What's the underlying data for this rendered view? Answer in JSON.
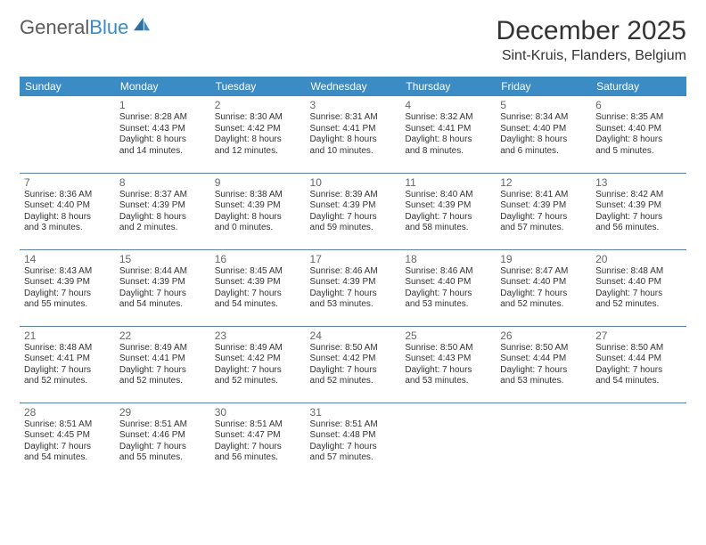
{
  "brand": {
    "name1": "General",
    "name2": "Blue"
  },
  "title": "December 2025",
  "location": "Sint-Kruis, Flanders, Belgium",
  "header_bg": "#3b8bc4",
  "weekdays": [
    "Sunday",
    "Monday",
    "Tuesday",
    "Wednesday",
    "Thursday",
    "Friday",
    "Saturday"
  ],
  "weeks": [
    [
      {
        "n": "",
        "sr": "",
        "ss": "",
        "d1": "",
        "d2": ""
      },
      {
        "n": "1",
        "sr": "Sunrise: 8:28 AM",
        "ss": "Sunset: 4:43 PM",
        "d1": "Daylight: 8 hours",
        "d2": "and 14 minutes."
      },
      {
        "n": "2",
        "sr": "Sunrise: 8:30 AM",
        "ss": "Sunset: 4:42 PM",
        "d1": "Daylight: 8 hours",
        "d2": "and 12 minutes."
      },
      {
        "n": "3",
        "sr": "Sunrise: 8:31 AM",
        "ss": "Sunset: 4:41 PM",
        "d1": "Daylight: 8 hours",
        "d2": "and 10 minutes."
      },
      {
        "n": "4",
        "sr": "Sunrise: 8:32 AM",
        "ss": "Sunset: 4:41 PM",
        "d1": "Daylight: 8 hours",
        "d2": "and 8 minutes."
      },
      {
        "n": "5",
        "sr": "Sunrise: 8:34 AM",
        "ss": "Sunset: 4:40 PM",
        "d1": "Daylight: 8 hours",
        "d2": "and 6 minutes."
      },
      {
        "n": "6",
        "sr": "Sunrise: 8:35 AM",
        "ss": "Sunset: 4:40 PM",
        "d1": "Daylight: 8 hours",
        "d2": "and 5 minutes."
      }
    ],
    [
      {
        "n": "7",
        "sr": "Sunrise: 8:36 AM",
        "ss": "Sunset: 4:40 PM",
        "d1": "Daylight: 8 hours",
        "d2": "and 3 minutes."
      },
      {
        "n": "8",
        "sr": "Sunrise: 8:37 AM",
        "ss": "Sunset: 4:39 PM",
        "d1": "Daylight: 8 hours",
        "d2": "and 2 minutes."
      },
      {
        "n": "9",
        "sr": "Sunrise: 8:38 AM",
        "ss": "Sunset: 4:39 PM",
        "d1": "Daylight: 8 hours",
        "d2": "and 0 minutes."
      },
      {
        "n": "10",
        "sr": "Sunrise: 8:39 AM",
        "ss": "Sunset: 4:39 PM",
        "d1": "Daylight: 7 hours",
        "d2": "and 59 minutes."
      },
      {
        "n": "11",
        "sr": "Sunrise: 8:40 AM",
        "ss": "Sunset: 4:39 PM",
        "d1": "Daylight: 7 hours",
        "d2": "and 58 minutes."
      },
      {
        "n": "12",
        "sr": "Sunrise: 8:41 AM",
        "ss": "Sunset: 4:39 PM",
        "d1": "Daylight: 7 hours",
        "d2": "and 57 minutes."
      },
      {
        "n": "13",
        "sr": "Sunrise: 8:42 AM",
        "ss": "Sunset: 4:39 PM",
        "d1": "Daylight: 7 hours",
        "d2": "and 56 minutes."
      }
    ],
    [
      {
        "n": "14",
        "sr": "Sunrise: 8:43 AM",
        "ss": "Sunset: 4:39 PM",
        "d1": "Daylight: 7 hours",
        "d2": "and 55 minutes."
      },
      {
        "n": "15",
        "sr": "Sunrise: 8:44 AM",
        "ss": "Sunset: 4:39 PM",
        "d1": "Daylight: 7 hours",
        "d2": "and 54 minutes."
      },
      {
        "n": "16",
        "sr": "Sunrise: 8:45 AM",
        "ss": "Sunset: 4:39 PM",
        "d1": "Daylight: 7 hours",
        "d2": "and 54 minutes."
      },
      {
        "n": "17",
        "sr": "Sunrise: 8:46 AM",
        "ss": "Sunset: 4:39 PM",
        "d1": "Daylight: 7 hours",
        "d2": "and 53 minutes."
      },
      {
        "n": "18",
        "sr": "Sunrise: 8:46 AM",
        "ss": "Sunset: 4:40 PM",
        "d1": "Daylight: 7 hours",
        "d2": "and 53 minutes."
      },
      {
        "n": "19",
        "sr": "Sunrise: 8:47 AM",
        "ss": "Sunset: 4:40 PM",
        "d1": "Daylight: 7 hours",
        "d2": "and 52 minutes."
      },
      {
        "n": "20",
        "sr": "Sunrise: 8:48 AM",
        "ss": "Sunset: 4:40 PM",
        "d1": "Daylight: 7 hours",
        "d2": "and 52 minutes."
      }
    ],
    [
      {
        "n": "21",
        "sr": "Sunrise: 8:48 AM",
        "ss": "Sunset: 4:41 PM",
        "d1": "Daylight: 7 hours",
        "d2": "and 52 minutes."
      },
      {
        "n": "22",
        "sr": "Sunrise: 8:49 AM",
        "ss": "Sunset: 4:41 PM",
        "d1": "Daylight: 7 hours",
        "d2": "and 52 minutes."
      },
      {
        "n": "23",
        "sr": "Sunrise: 8:49 AM",
        "ss": "Sunset: 4:42 PM",
        "d1": "Daylight: 7 hours",
        "d2": "and 52 minutes."
      },
      {
        "n": "24",
        "sr": "Sunrise: 8:50 AM",
        "ss": "Sunset: 4:42 PM",
        "d1": "Daylight: 7 hours",
        "d2": "and 52 minutes."
      },
      {
        "n": "25",
        "sr": "Sunrise: 8:50 AM",
        "ss": "Sunset: 4:43 PM",
        "d1": "Daylight: 7 hours",
        "d2": "and 53 minutes."
      },
      {
        "n": "26",
        "sr": "Sunrise: 8:50 AM",
        "ss": "Sunset: 4:44 PM",
        "d1": "Daylight: 7 hours",
        "d2": "and 53 minutes."
      },
      {
        "n": "27",
        "sr": "Sunrise: 8:50 AM",
        "ss": "Sunset: 4:44 PM",
        "d1": "Daylight: 7 hours",
        "d2": "and 54 minutes."
      }
    ],
    [
      {
        "n": "28",
        "sr": "Sunrise: 8:51 AM",
        "ss": "Sunset: 4:45 PM",
        "d1": "Daylight: 7 hours",
        "d2": "and 54 minutes."
      },
      {
        "n": "29",
        "sr": "Sunrise: 8:51 AM",
        "ss": "Sunset: 4:46 PM",
        "d1": "Daylight: 7 hours",
        "d2": "and 55 minutes."
      },
      {
        "n": "30",
        "sr": "Sunrise: 8:51 AM",
        "ss": "Sunset: 4:47 PM",
        "d1": "Daylight: 7 hours",
        "d2": "and 56 minutes."
      },
      {
        "n": "31",
        "sr": "Sunrise: 8:51 AM",
        "ss": "Sunset: 4:48 PM",
        "d1": "Daylight: 7 hours",
        "d2": "and 57 minutes."
      },
      {
        "n": "",
        "sr": "",
        "ss": "",
        "d1": "",
        "d2": ""
      },
      {
        "n": "",
        "sr": "",
        "ss": "",
        "d1": "",
        "d2": ""
      },
      {
        "n": "",
        "sr": "",
        "ss": "",
        "d1": "",
        "d2": ""
      }
    ]
  ]
}
